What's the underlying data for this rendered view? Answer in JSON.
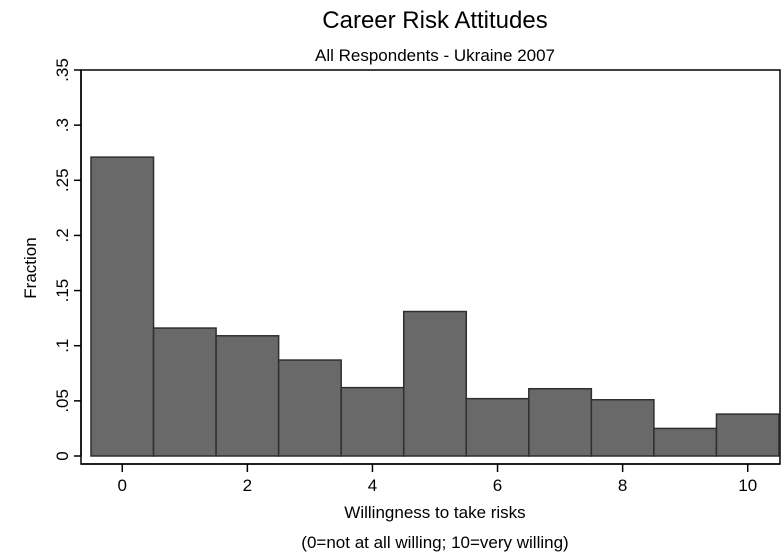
{
  "chart_data": {
    "type": "bar",
    "title": "Career Risk Attitudes",
    "subtitle": "All Respondents - Ukraine 2007",
    "xlabel": "Willingness to take risks",
    "xlabel_note": "(0=not at all willing; 10=very willing)",
    "ylabel": "Fraction",
    "categories": [
      0,
      1,
      2,
      3,
      4,
      5,
      6,
      7,
      8,
      9,
      10
    ],
    "values": [
      0.271,
      0.116,
      0.109,
      0.087,
      0.062,
      0.131,
      0.052,
      0.061,
      0.051,
      0.025,
      0.038
    ],
    "xlim": [
      -0.5,
      10.5
    ],
    "ylim": [
      0,
      0.35
    ],
    "x_ticks": [
      "0",
      "2",
      "4",
      "6",
      "8",
      "10"
    ],
    "y_ticks": [
      "0",
      ".05",
      ".1",
      ".15",
      ".2",
      ".25",
      ".3",
      ".35"
    ],
    "grid": false,
    "bar_color": "#696969",
    "edge_color": "#2f2f2f"
  }
}
